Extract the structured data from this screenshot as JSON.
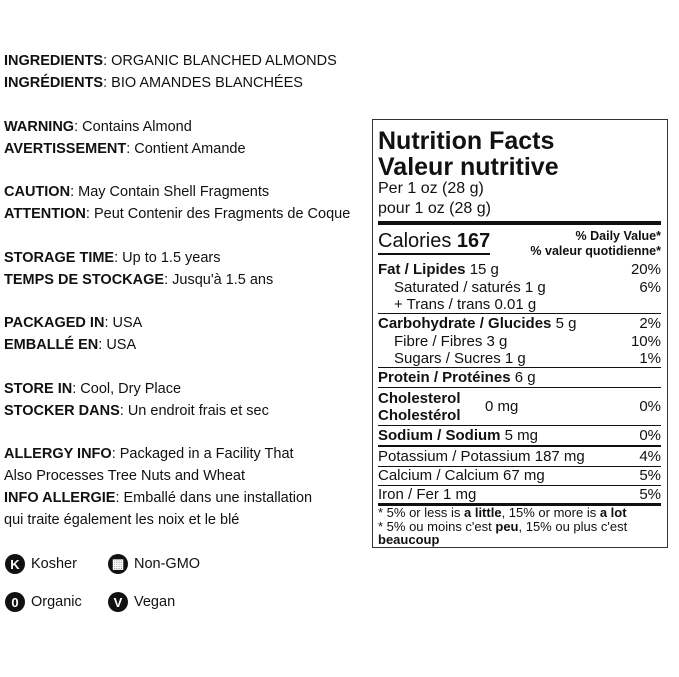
{
  "left_info": [
    {
      "label": "INGREDIENTS",
      "text": "ORGANIC BLANCHED ALMONDS"
    },
    {
      "label": "INGRÉDIENTS",
      "text": "BIO AMANDES BLANCHÉES"
    },
    {
      "label": "WARNING",
      "text": "Contains Almond"
    },
    {
      "label": "AVERTISSEMENT",
      "text": "Contient Amande"
    },
    {
      "label": "CAUTION",
      "text": "May Contain Shell Fragments"
    },
    {
      "label": "ATTENTION",
      "text": "Peut Contenir des Fragments de Coque"
    },
    {
      "label": "STORAGE TIME",
      "text": "Up to 1.5 years"
    },
    {
      "label": "TEMPS DE STOCKAGE",
      "text": "Jusqu'à 1.5 ans"
    },
    {
      "label": "PACKAGED IN",
      "text": "USA"
    },
    {
      "label": "EMBALLÉ EN",
      "text": "USA"
    },
    {
      "label": "STORE IN",
      "text": "Cool, Dry Place"
    },
    {
      "label": "STOCKER DANS",
      "text": "Un endroit frais et sec"
    },
    {
      "label": "ALLERGY INFO",
      "text": "Packaged in a Facility That"
    },
    {
      "label": "",
      "text": "Also Processes Tree Nuts and Wheat"
    },
    {
      "label": "INFO ALLERGIE",
      "text": "Emballé dans une installation"
    },
    {
      "label": "",
      "text": "qui traite également les noix et le blé"
    }
  ],
  "badges": [
    {
      "icon": "kosher-icon",
      "glyph": "K",
      "label": "Kosher"
    },
    {
      "icon": "non-gmo-icon",
      "glyph": "▦",
      "label": "Non-GMO"
    },
    {
      "icon": "organic-icon",
      "glyph": "0",
      "label": "Organic"
    },
    {
      "icon": "vegan-icon",
      "glyph": "V",
      "label": "Vegan"
    }
  ],
  "nutrition": {
    "title_en": "Nutrition Facts",
    "title_fr": "Valeur nutritive",
    "serving_en": "Per 1 oz (28 g)",
    "serving_fr": "pour 1 oz (28 g)",
    "calories_label": "Calories",
    "calories": "167",
    "dv_en": "% Daily Value*",
    "dv_fr": "% valeur quotidienne*",
    "fat": {
      "label": "Fat / Lipides",
      "amount": "15 g",
      "dv": "20%"
    },
    "sat": {
      "label": "Saturated / saturés",
      "amount": "1 g",
      "dv": "6%"
    },
    "trans": {
      "label": "+ Trans / trans",
      "amount": "0.01 g"
    },
    "carb": {
      "label": "Carbohydrate / Glucides",
      "amount": "5 g",
      "dv": "2%"
    },
    "fibre": {
      "label": "Fibre / Fibres",
      "amount": "3 g",
      "dv": "10%"
    },
    "sugars": {
      "label": "Sugars / Sucres",
      "amount": "1 g",
      "dv": "1%"
    },
    "protein": {
      "label": "Protein / Protéines",
      "amount": "6 g"
    },
    "chol": {
      "label_en": "Cholesterol",
      "label_fr": "Cholestérol",
      "amount": "0 mg",
      "dv": "0%"
    },
    "sodium": {
      "label": "Sodium / Sodium",
      "amount": "5 mg",
      "dv": "0%"
    },
    "potassium": {
      "label": "Potassium / Potassium",
      "amount": "187 mg",
      "dv": "4%"
    },
    "calcium": {
      "label": "Calcium / Calcium",
      "amount": "67 mg",
      "dv": "5%"
    },
    "iron": {
      "label": "Iron / Fer",
      "amount": "1 mg",
      "dv": "5%"
    },
    "foot1": [
      "* 5% or less is ",
      "a little",
      ", 15% or more is ",
      "a lot"
    ],
    "foot2": [
      "* 5% ou moins c'est ",
      "peu",
      ", 15% ou plus c'est ",
      "beaucoup"
    ]
  }
}
